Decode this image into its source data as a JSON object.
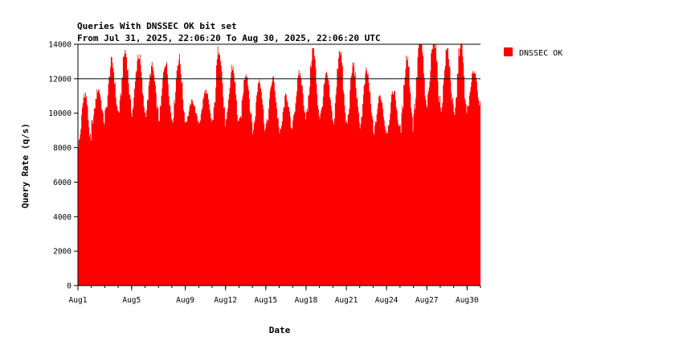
{
  "chart_data": {
    "type": "area",
    "title": "Queries With DNSSEC OK bit set",
    "subtitle": "From Jul 31, 2025, 22:06:20 To Aug 30, 2025, 22:06:20 UTC",
    "xlabel": "Date",
    "ylabel": "Query Rate (q/s)",
    "ylim": [
      0,
      14000
    ],
    "yticks": [
      0,
      2000,
      4000,
      6000,
      8000,
      10000,
      12000,
      14000
    ],
    "y_gridlines": [
      12000,
      14000
    ],
    "x_range_days": [
      0,
      30
    ],
    "x_ticks": [
      {
        "day": 0,
        "label": "Aug1"
      },
      {
        "day": 4,
        "label": "Aug5"
      },
      {
        "day": 8,
        "label": "Aug9"
      },
      {
        "day": 11,
        "label": "Aug12"
      },
      {
        "day": 14,
        "label": "Aug15"
      },
      {
        "day": 17,
        "label": "Aug18"
      },
      {
        "day": 20,
        "label": "Aug21"
      },
      {
        "day": 23,
        "label": "Aug24"
      },
      {
        "day": 26,
        "label": "Aug27"
      },
      {
        "day": 29,
        "label": "Aug30"
      }
    ],
    "legend_position": "right",
    "series": [
      {
        "name": "DNSSEC OK",
        "color": "#ff0000",
        "daily_profile": [
          {
            "min": 8200,
            "max": 11200
          },
          {
            "min": 9400,
            "max": 11400
          },
          {
            "min": 10000,
            "max": 13000
          },
          {
            "min": 10100,
            "max": 13600
          },
          {
            "min": 10100,
            "max": 13400
          },
          {
            "min": 10000,
            "max": 12700
          },
          {
            "min": 9700,
            "max": 13000
          },
          {
            "min": 9700,
            "max": 13200
          },
          {
            "min": 9500,
            "max": 10700
          },
          {
            "min": 9500,
            "max": 11300
          },
          {
            "min": 9500,
            "max": 13900
          },
          {
            "min": 9400,
            "max": 12700
          },
          {
            "min": 9400,
            "max": 12400
          },
          {
            "min": 9000,
            "max": 12000
          },
          {
            "min": 9300,
            "max": 12000
          },
          {
            "min": 8800,
            "max": 11000
          },
          {
            "min": 9800,
            "max": 12300
          },
          {
            "min": 9900,
            "max": 13700
          },
          {
            "min": 9800,
            "max": 12200
          },
          {
            "min": 9400,
            "max": 13800
          },
          {
            "min": 9400,
            "max": 12800
          },
          {
            "min": 9400,
            "max": 12400
          },
          {
            "min": 8900,
            "max": 11000
          },
          {
            "min": 9000,
            "max": 11300
          },
          {
            "min": 9200,
            "max": 13300
          },
          {
            "min": 10100,
            "max": 14600
          },
          {
            "min": 10600,
            "max": 14500
          },
          {
            "min": 10200,
            "max": 13700
          },
          {
            "min": 9700,
            "max": 14200
          },
          {
            "min": 10400,
            "max": 12500
          }
        ]
      }
    ]
  }
}
